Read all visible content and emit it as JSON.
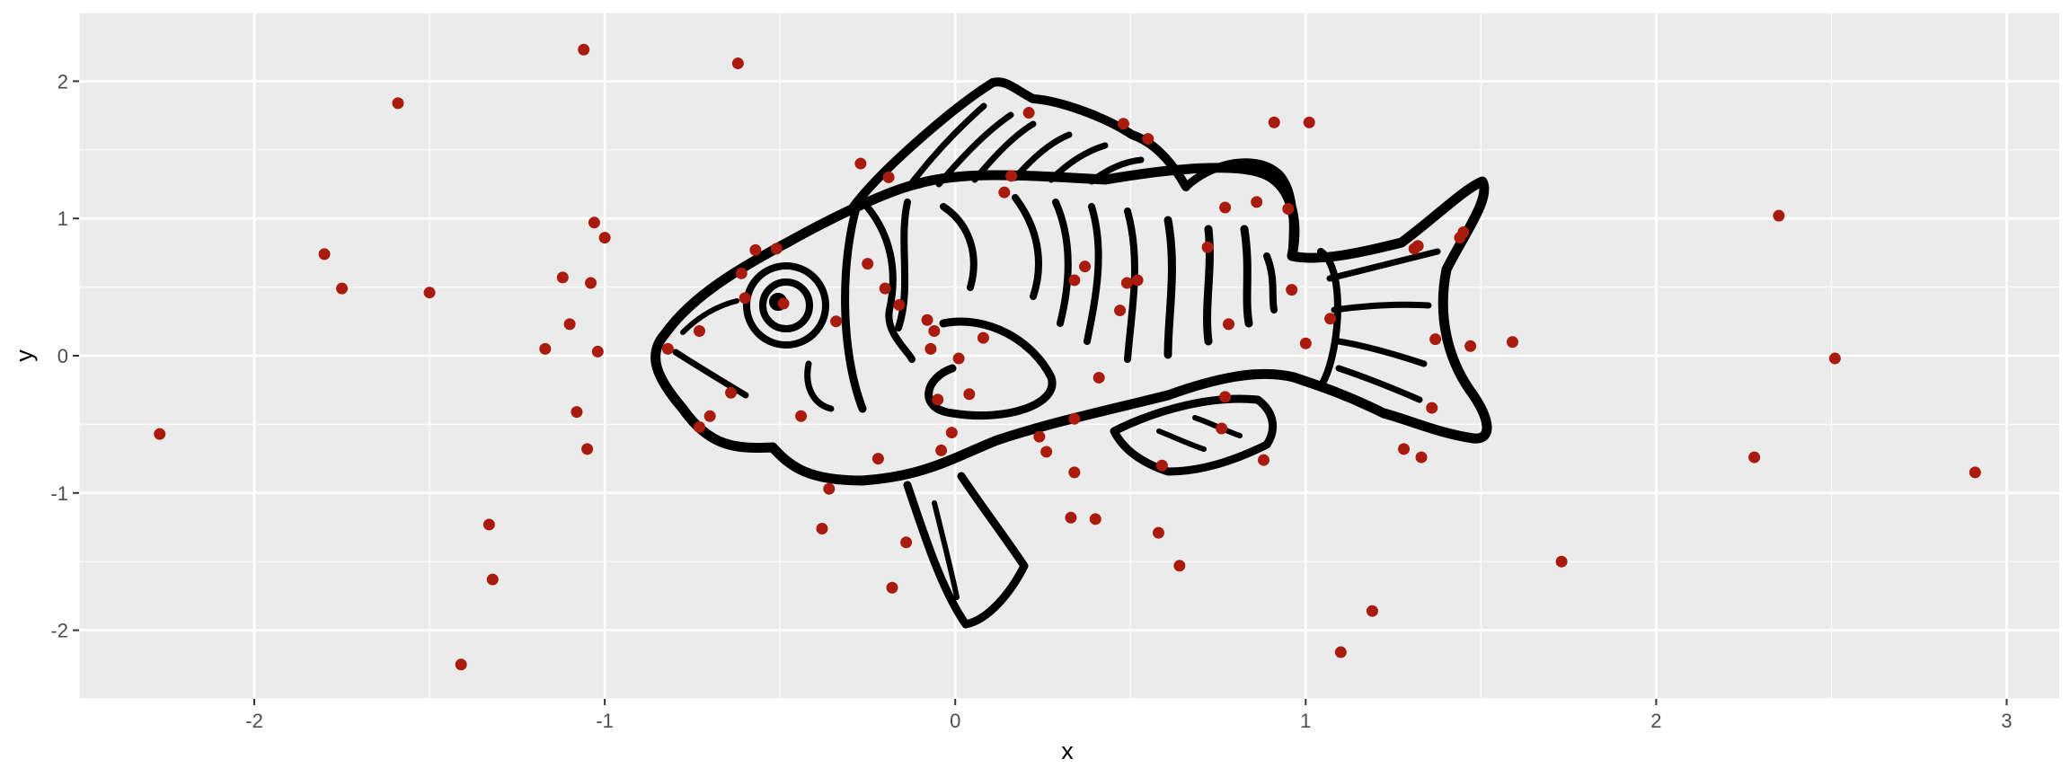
{
  "chart_data": {
    "type": "scatter",
    "xlabel": "x",
    "ylabel": "y",
    "xlim": [
      -2.5,
      3.15
    ],
    "ylim": [
      -2.5,
      2.5
    ],
    "x_ticks": [
      -2,
      -1,
      0,
      1,
      2,
      3
    ],
    "y_ticks": [
      -2,
      -1,
      0,
      1,
      2
    ],
    "x_tick_labels": [
      "-2",
      "-1",
      "0",
      "1",
      "2",
      "3"
    ],
    "y_tick_labels": [
      "-2",
      "-1",
      "0",
      "1",
      "2"
    ],
    "grid": true,
    "background_image": "fish-line-drawing",
    "colors": {
      "panel": "#ebebeb",
      "grid": "#ffffff",
      "point": "#a81b0d",
      "fish": "#000000"
    },
    "points": [
      {
        "x": -2.27,
        "y": -0.57
      },
      {
        "x": -1.8,
        "y": 0.74
      },
      {
        "x": -1.75,
        "y": 0.49
      },
      {
        "x": -1.59,
        "y": 1.84
      },
      {
        "x": -1.5,
        "y": 0.46
      },
      {
        "x": -1.41,
        "y": -2.25
      },
      {
        "x": -1.33,
        "y": -1.23
      },
      {
        "x": -1.32,
        "y": -1.63
      },
      {
        "x": -1.17,
        "y": 0.05
      },
      {
        "x": -1.12,
        "y": 0.57
      },
      {
        "x": -1.1,
        "y": 0.23
      },
      {
        "x": -1.08,
        "y": -0.41
      },
      {
        "x": -1.06,
        "y": 2.23
      },
      {
        "x": -1.05,
        "y": -0.68
      },
      {
        "x": -1.04,
        "y": 0.53
      },
      {
        "x": -1.03,
        "y": 0.97
      },
      {
        "x": -1.02,
        "y": 0.03
      },
      {
        "x": -1.0,
        "y": 0.86
      },
      {
        "x": -0.82,
        "y": 0.05
      },
      {
        "x": -0.73,
        "y": 0.18
      },
      {
        "x": -0.73,
        "y": -0.52
      },
      {
        "x": -0.7,
        "y": -0.44
      },
      {
        "x": -0.64,
        "y": -0.27
      },
      {
        "x": -0.62,
        "y": 2.13
      },
      {
        "x": -0.61,
        "y": 0.6
      },
      {
        "x": -0.6,
        "y": 0.42
      },
      {
        "x": -0.57,
        "y": 0.77
      },
      {
        "x": -0.51,
        "y": 0.78
      },
      {
        "x": -0.49,
        "y": 0.38
      },
      {
        "x": -0.44,
        "y": -0.44
      },
      {
        "x": -0.38,
        "y": -1.26
      },
      {
        "x": -0.36,
        "y": -0.97
      },
      {
        "x": -0.34,
        "y": 0.25
      },
      {
        "x": -0.27,
        "y": 1.4
      },
      {
        "x": -0.25,
        "y": 0.67
      },
      {
        "x": -0.22,
        "y": -0.75
      },
      {
        "x": -0.2,
        "y": 0.49
      },
      {
        "x": -0.19,
        "y": 1.3
      },
      {
        "x": -0.18,
        "y": -1.69
      },
      {
        "x": -0.16,
        "y": 0.37
      },
      {
        "x": -0.14,
        "y": -1.36
      },
      {
        "x": -0.08,
        "y": 0.26
      },
      {
        "x": -0.07,
        "y": 0.05
      },
      {
        "x": -0.06,
        "y": 0.18
      },
      {
        "x": -0.05,
        "y": -0.32
      },
      {
        "x": -0.04,
        "y": -0.69
      },
      {
        "x": -0.01,
        "y": -0.56
      },
      {
        "x": 0.01,
        "y": -0.02
      },
      {
        "x": 0.04,
        "y": -0.28
      },
      {
        "x": 0.08,
        "y": 0.13
      },
      {
        "x": 0.14,
        "y": 1.19
      },
      {
        "x": 0.16,
        "y": 1.31
      },
      {
        "x": 0.21,
        "y": 1.77
      },
      {
        "x": 0.24,
        "y": -0.59
      },
      {
        "x": 0.26,
        "y": -0.7
      },
      {
        "x": 0.33,
        "y": -1.18
      },
      {
        "x": 0.34,
        "y": -0.46
      },
      {
        "x": 0.34,
        "y": -0.85
      },
      {
        "x": 0.34,
        "y": 0.55
      },
      {
        "x": 0.37,
        "y": 0.65
      },
      {
        "x": 0.4,
        "y": -1.19
      },
      {
        "x": 0.41,
        "y": -0.16
      },
      {
        "x": 0.47,
        "y": 0.33
      },
      {
        "x": 0.48,
        "y": 1.69
      },
      {
        "x": 0.49,
        "y": 0.53
      },
      {
        "x": 0.52,
        "y": 0.55
      },
      {
        "x": 0.55,
        "y": 1.58
      },
      {
        "x": 0.58,
        "y": -1.29
      },
      {
        "x": 0.59,
        "y": -0.8
      },
      {
        "x": 0.64,
        "y": -1.53
      },
      {
        "x": 0.72,
        "y": 0.79
      },
      {
        "x": 0.76,
        "y": -0.53
      },
      {
        "x": 0.77,
        "y": 1.08
      },
      {
        "x": 0.78,
        "y": 0.23
      },
      {
        "x": 0.77,
        "y": -0.3
      },
      {
        "x": 0.86,
        "y": 1.12
      },
      {
        "x": 0.88,
        "y": -0.76
      },
      {
        "x": 0.91,
        "y": 1.7
      },
      {
        "x": 0.95,
        "y": 1.07
      },
      {
        "x": 0.96,
        "y": 0.48
      },
      {
        "x": 1.0,
        "y": 0.09
      },
      {
        "x": 1.01,
        "y": 1.7
      },
      {
        "x": 1.07,
        "y": 0.27
      },
      {
        "x": 1.1,
        "y": -2.16
      },
      {
        "x": 1.19,
        "y": -1.86
      },
      {
        "x": 1.28,
        "y": -0.68
      },
      {
        "x": 1.31,
        "y": 0.78
      },
      {
        "x": 1.32,
        "y": 0.8
      },
      {
        "x": 1.33,
        "y": -0.74
      },
      {
        "x": 1.36,
        "y": -0.38
      },
      {
        "x": 1.37,
        "y": 0.12
      },
      {
        "x": 1.44,
        "y": 0.86
      },
      {
        "x": 1.45,
        "y": 0.9
      },
      {
        "x": 1.47,
        "y": 0.07
      },
      {
        "x": 1.59,
        "y": 0.1
      },
      {
        "x": 1.73,
        "y": -1.5
      },
      {
        "x": 2.28,
        "y": -0.74
      },
      {
        "x": 2.35,
        "y": 1.02
      },
      {
        "x": 2.51,
        "y": -0.02
      },
      {
        "x": 2.91,
        "y": -0.85
      }
    ]
  }
}
